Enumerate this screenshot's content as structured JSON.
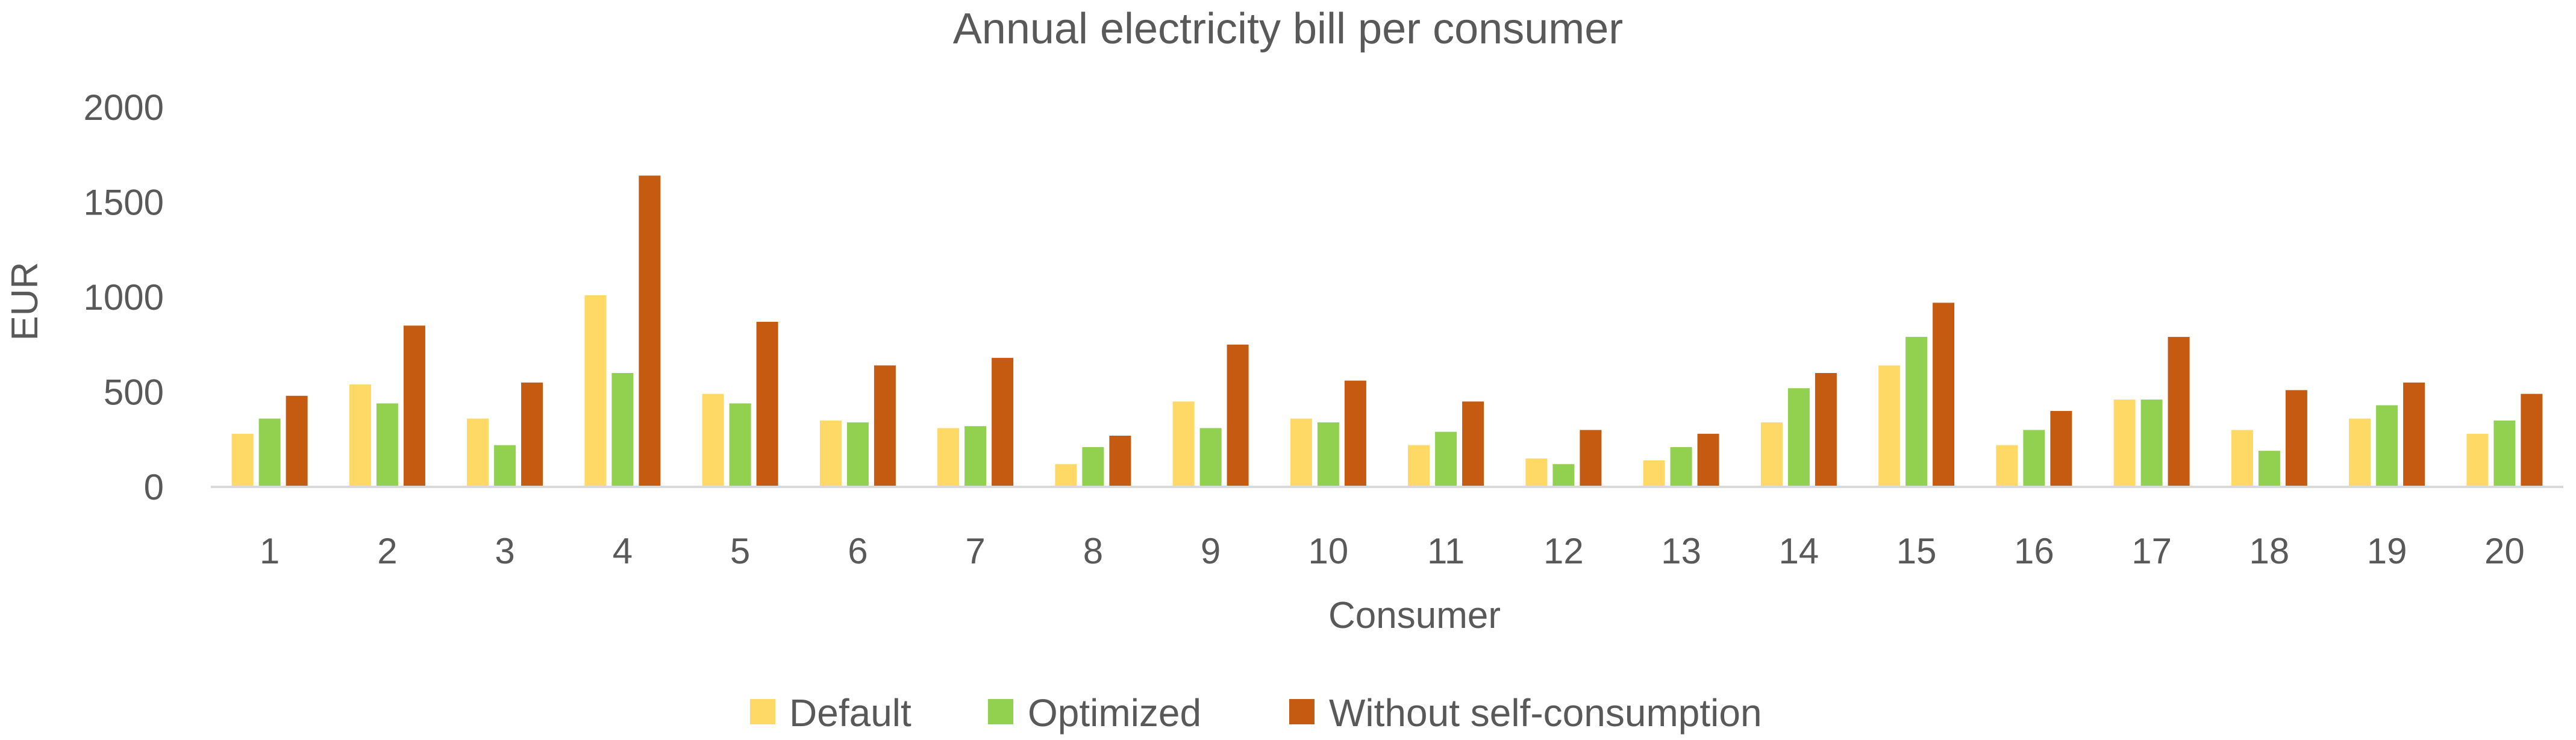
{
  "chart_data": {
    "type": "bar",
    "title": "Annual electricity bill per consumer",
    "xlabel": "Consumer",
    "ylabel": "EUR",
    "ylim": [
      0,
      2000
    ],
    "yticks": [
      0,
      500,
      1000,
      1500,
      2000
    ],
    "ytick_labels": [
      "0",
      "500",
      "1000",
      "1500",
      "2000"
    ],
    "grid": false,
    "legend_position": "bottom",
    "categories": [
      "1",
      "2",
      "3",
      "4",
      "5",
      "6",
      "7",
      "8",
      "9",
      "10",
      "11",
      "12",
      "13",
      "14",
      "15",
      "16",
      "17",
      "18",
      "19",
      "20"
    ],
    "series": [
      {
        "name": "Default",
        "color": "#FFD966",
        "values": [
          280,
          540,
          360,
          1010,
          490,
          350,
          310,
          120,
          450,
          360,
          220,
          150,
          140,
          340,
          640,
          220,
          460,
          300,
          360,
          280
        ]
      },
      {
        "name": "Optimized",
        "color": "#92D050",
        "values": [
          360,
          440,
          220,
          600,
          440,
          340,
          320,
          210,
          310,
          340,
          290,
          120,
          210,
          520,
          790,
          300,
          460,
          190,
          430,
          350
        ]
      },
      {
        "name": "Without self-consumption",
        "color": "#C55A11",
        "values": [
          480,
          850,
          550,
          1640,
          870,
          640,
          680,
          270,
          750,
          560,
          450,
          300,
          280,
          600,
          970,
          400,
          790,
          510,
          550,
          490
        ]
      }
    ]
  },
  "colors": {
    "axis": "#D9D9D9",
    "text": "#595959"
  }
}
